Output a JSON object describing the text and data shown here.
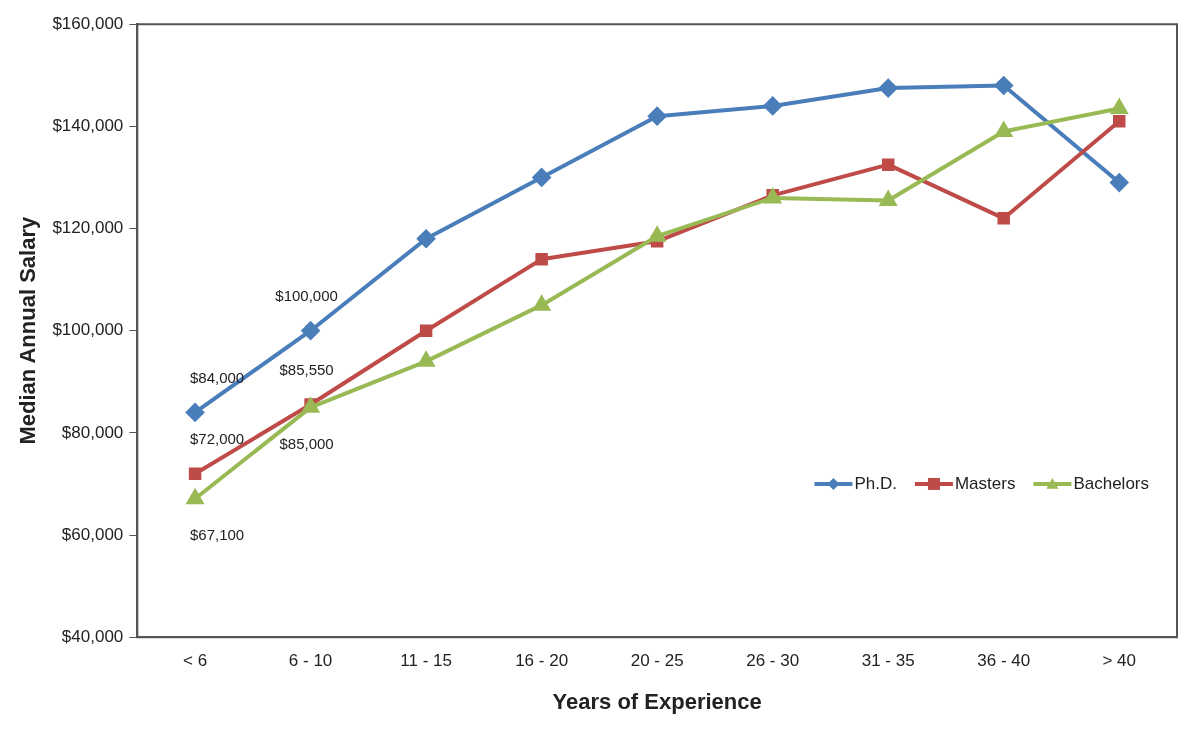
{
  "chart_data": {
    "type": "line",
    "xlabel": "Years of Experience",
    "ylabel": "Median Annual Salary",
    "categories": [
      "< 6",
      "6 - 10",
      "11 - 15",
      "16 - 20",
      "20 - 25",
      "26 - 30",
      "31 - 35",
      "36 - 40",
      "> 40"
    ],
    "series": [
      {
        "name": "Ph.D.",
        "color": "#4a7ebb",
        "marker": "diamond",
        "values": [
          84000,
          100000,
          118000,
          130000,
          142000,
          144000,
          147500,
          148000,
          129000
        ],
        "value_labels": [
          "$84,000",
          "$100,000",
          null,
          null,
          null,
          null,
          null,
          null,
          null
        ]
      },
      {
        "name": "Masters",
        "color": "#be4b48",
        "marker": "square",
        "values": [
          72000,
          85550,
          100000,
          114000,
          117500,
          126500,
          132500,
          122000,
          141000
        ],
        "value_labels": [
          "$72,000",
          "$85,550",
          null,
          null,
          null,
          null,
          null,
          null,
          null
        ]
      },
      {
        "name": "Bachelors",
        "color": "#98b954",
        "marker": "triangle",
        "values": [
          67100,
          85000,
          94000,
          105000,
          118500,
          126000,
          125500,
          139000,
          143500
        ],
        "value_labels": [
          "$67,100",
          "$85,000",
          null,
          null,
          null,
          null,
          null,
          null,
          null
        ]
      }
    ],
    "ylim": [
      40000,
      160000
    ],
    "yticks": [
      {
        "value": 40000,
        "label": "$40,000"
      },
      {
        "value": 60000,
        "label": "$60,000"
      },
      {
        "value": 80000,
        "label": "$80,000"
      },
      {
        "value": 100000,
        "label": "$100,000"
      },
      {
        "value": 120000,
        "label": "$120,000"
      },
      {
        "value": 140000,
        "label": "$140,000"
      },
      {
        "value": 160000,
        "label": "$160,000"
      }
    ],
    "grid": false,
    "legend": "right",
    "line_style": "solid"
  }
}
